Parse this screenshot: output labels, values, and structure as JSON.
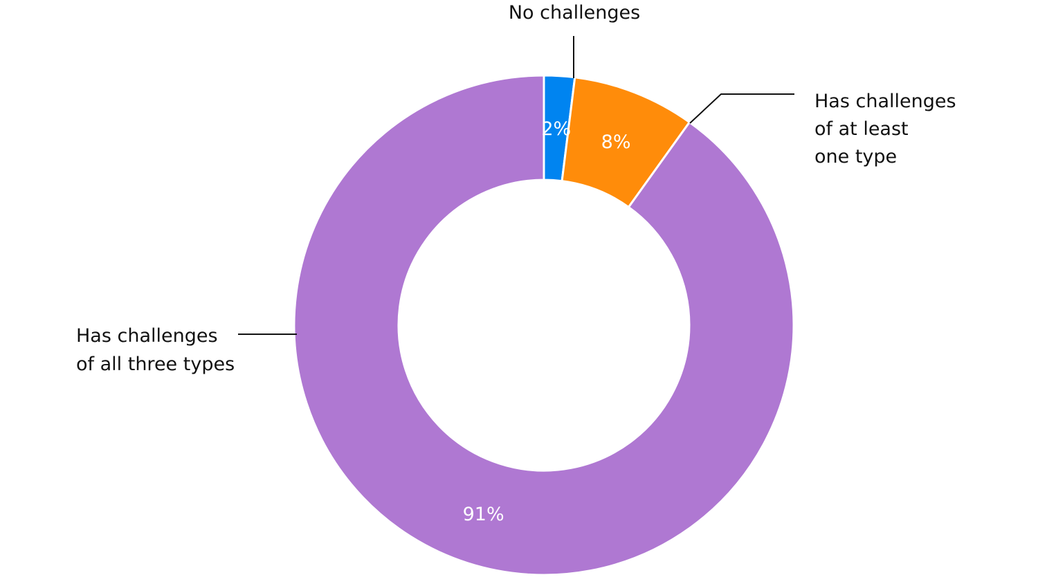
{
  "chart_data": {
    "type": "pie",
    "donut": true,
    "legend": "none",
    "slices": [
      {
        "label_lines": [
          "No challenges"
        ],
        "value": 2,
        "value_label": "2%",
        "color": "#0084F0"
      },
      {
        "label_lines": [
          "Has challenges",
          "of at least",
          "one type"
        ],
        "value": 8,
        "value_label": "8%",
        "color": "#FF8C0A"
      },
      {
        "label_lines": [
          "Has challenges",
          "of all three types"
        ],
        "value": 91,
        "value_label": "91%",
        "color": "#AF78D2"
      }
    ]
  }
}
